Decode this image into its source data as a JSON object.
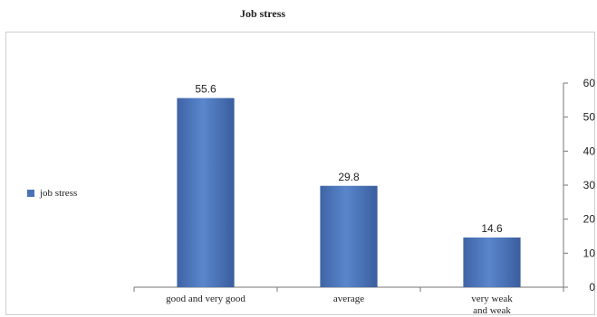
{
  "chart_data": {
    "type": "bar",
    "title": "Job stress",
    "categories": [
      [
        "good and very good"
      ],
      [
        "average"
      ],
      [
        "very weak",
        "and weak"
      ]
    ],
    "series": [
      {
        "name": "job stress",
        "values": [
          55.6,
          29.8,
          14.6
        ],
        "data_labels": [
          "55.6",
          "29.8",
          "14.6"
        ],
        "color": "#4a72b6"
      }
    ],
    "yticks": [
      "0",
      "10",
      "20",
      "30",
      "40",
      "50",
      "60"
    ],
    "ylim": [
      0,
      60
    ],
    "y_axis_side": "right",
    "grid": false,
    "legend_position": "left"
  }
}
